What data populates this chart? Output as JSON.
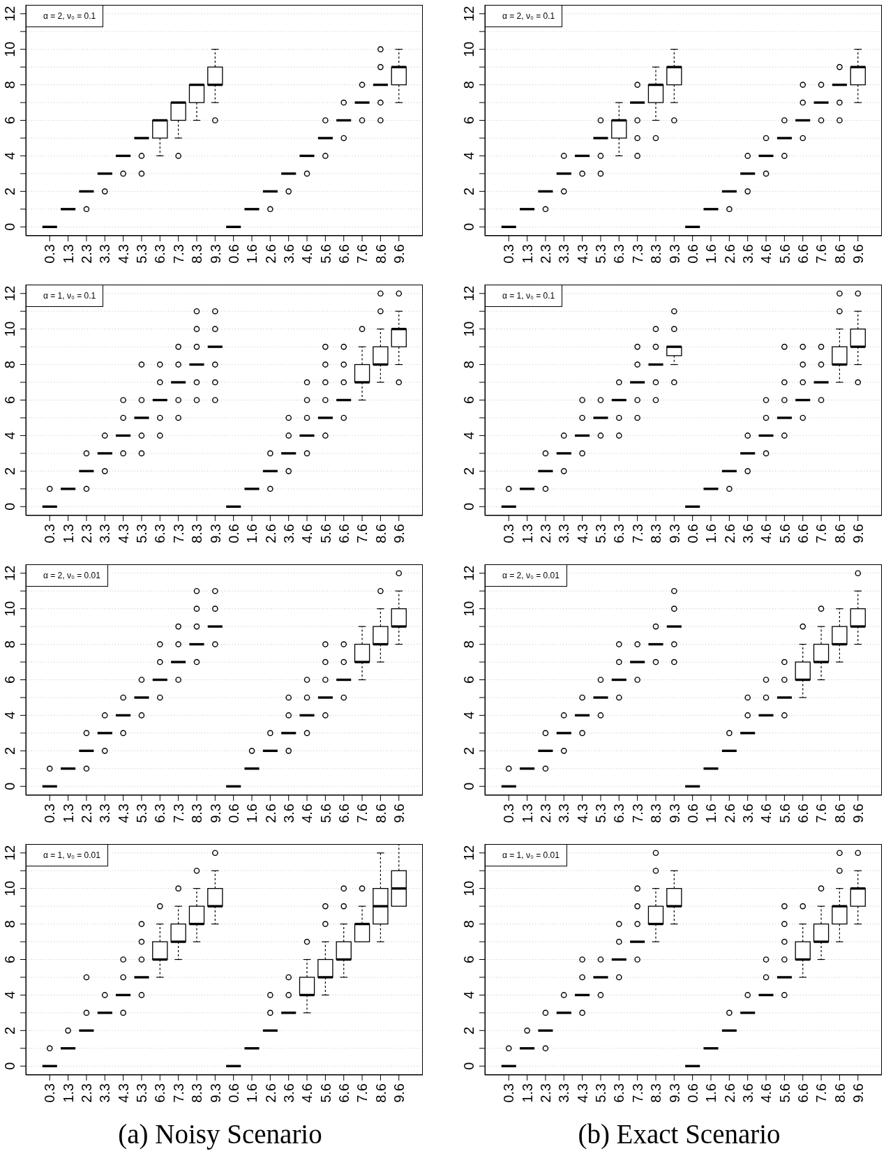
{
  "chart_data": [
    {
      "type": "box",
      "title": "α = 2, ν₀ = 0.1",
      "categories": [
        "0.3",
        "1.3",
        "2.3",
        "3.3",
        "4.3",
        "5.3",
        "6.3",
        "7.3",
        "8.3",
        "9.3",
        "0.6",
        "1.6",
        "2.6",
        "3.6",
        "4.6",
        "5.6",
        "6.6",
        "7.6",
        "8.6",
        "9.6"
      ],
      "boxes": [
        {
          "low": 0,
          "q1": 0,
          "median": 0,
          "q3": 0,
          "high": 0
        },
        {
          "low": 1,
          "q1": 1,
          "median": 1,
          "q3": 1,
          "high": 1
        },
        {
          "low": 2,
          "q1": 2,
          "median": 2,
          "q3": 2,
          "high": 2,
          "outliers": [
            1
          ]
        },
        {
          "low": 3,
          "q1": 3,
          "median": 3,
          "q3": 3,
          "high": 3,
          "outliers": [
            2
          ]
        },
        {
          "low": 4,
          "q1": 4,
          "median": 4,
          "q3": 4,
          "high": 4,
          "outliers": [
            3
          ]
        },
        {
          "low": 5,
          "q1": 5,
          "median": 5,
          "q3": 5,
          "high": 5,
          "outliers": [
            4,
            3
          ]
        },
        {
          "low": 4,
          "q1": 5,
          "median": 6,
          "q3": 6,
          "high": 6
        },
        {
          "low": 5,
          "q1": 6,
          "median": 7,
          "q3": 7,
          "high": 7,
          "outliers": [
            4
          ]
        },
        {
          "low": 6,
          "q1": 7,
          "median": 8,
          "q3": 8,
          "high": 8
        },
        {
          "low": 7,
          "q1": 8,
          "median": 8,
          "q3": 9,
          "high": 10,
          "outliers": [
            6
          ]
        },
        {
          "low": 0,
          "q1": 0,
          "median": 0,
          "q3": 0,
          "high": 0
        },
        {
          "low": 1,
          "q1": 1,
          "median": 1,
          "q3": 1,
          "high": 1
        },
        {
          "low": 2,
          "q1": 2,
          "median": 2,
          "q3": 2,
          "high": 2,
          "outliers": [
            1
          ]
        },
        {
          "low": 3,
          "q1": 3,
          "median": 3,
          "q3": 3,
          "high": 3,
          "outliers": [
            2
          ]
        },
        {
          "low": 4,
          "q1": 4,
          "median": 4,
          "q3": 4,
          "high": 4,
          "outliers": [
            3
          ]
        },
        {
          "low": 5,
          "q1": 5,
          "median": 5,
          "q3": 5,
          "high": 5,
          "outliers": [
            6,
            4
          ]
        },
        {
          "low": 6,
          "q1": 6,
          "median": 6,
          "q3": 6,
          "high": 6,
          "outliers": [
            7,
            5
          ]
        },
        {
          "low": 7,
          "q1": 7,
          "median": 7,
          "q3": 7,
          "high": 7,
          "outliers": [
            8,
            6
          ]
        },
        {
          "low": 8,
          "q1": 8,
          "median": 8,
          "q3": 8,
          "high": 8,
          "outliers": [
            10,
            9,
            7,
            6
          ]
        },
        {
          "low": 7,
          "q1": 8,
          "median": 9,
          "q3": 9,
          "high": 10
        }
      ],
      "ylim": [
        -0.5,
        12.5
      ],
      "yticks": [
        0,
        {
          "value": 1,
          "label": null
        },
        2,
        {
          "value": 3,
          "label": null
        },
        4,
        {
          "value": 5,
          "label": null
        },
        6,
        {
          "value": 7,
          "label": null
        },
        8,
        {
          "value": 9,
          "label": null
        },
        10,
        {
          "value": 11,
          "label": null
        },
        12
      ],
      "grid": "y"
    },
    {
      "type": "box",
      "title": "α = 2, ν₀ = 0.1",
      "categories": [
        "0.3",
        "1.3",
        "2.3",
        "3.3",
        "4.3",
        "5.3",
        "6.3",
        "7.3",
        "8.3",
        "9.3",
        "0.6",
        "1.6",
        "2.6",
        "3.6",
        "4.6",
        "5.6",
        "6.6",
        "7.6",
        "8.6",
        "9.6"
      ],
      "boxes": [
        {
          "low": 0,
          "q1": 0,
          "median": 0,
          "q3": 0,
          "high": 0
        },
        {
          "low": 1,
          "q1": 1,
          "median": 1,
          "q3": 1,
          "high": 1
        },
        {
          "low": 2,
          "q1": 2,
          "median": 2,
          "q3": 2,
          "high": 2,
          "outliers": [
            1
          ]
        },
        {
          "low": 3,
          "q1": 3,
          "median": 3,
          "q3": 3,
          "high": 3,
          "outliers": [
            4,
            2
          ]
        },
        {
          "low": 4,
          "q1": 4,
          "median": 4,
          "q3": 4,
          "high": 4,
          "outliers": [
            3
          ]
        },
        {
          "low": 5,
          "q1": 5,
          "median": 5,
          "q3": 5,
          "high": 5,
          "outliers": [
            6,
            4,
            3
          ]
        },
        {
          "low": 4,
          "q1": 5,
          "median": 6,
          "q3": 6,
          "high": 7
        },
        {
          "low": 7,
          "q1": 7,
          "median": 7,
          "q3": 7,
          "high": 7,
          "outliers": [
            8,
            6,
            5,
            4
          ]
        },
        {
          "low": 6,
          "q1": 7,
          "median": 8,
          "q3": 8,
          "high": 9,
          "outliers": [
            5
          ]
        },
        {
          "low": 7,
          "q1": 8,
          "median": 9,
          "q3": 9,
          "high": 10,
          "outliers": [
            6
          ]
        },
        {
          "low": 0,
          "q1": 0,
          "median": 0,
          "q3": 0,
          "high": 0
        },
        {
          "low": 1,
          "q1": 1,
          "median": 1,
          "q3": 1,
          "high": 1
        },
        {
          "low": 2,
          "q1": 2,
          "median": 2,
          "q3": 2,
          "high": 2,
          "outliers": [
            1
          ]
        },
        {
          "low": 3,
          "q1": 3,
          "median": 3,
          "q3": 3,
          "high": 3,
          "outliers": [
            4,
            2
          ]
        },
        {
          "low": 4,
          "q1": 4,
          "median": 4,
          "q3": 4,
          "high": 4,
          "outliers": [
            5,
            3
          ]
        },
        {
          "low": 5,
          "q1": 5,
          "median": 5,
          "q3": 5,
          "high": 5,
          "outliers": [
            6,
            4
          ]
        },
        {
          "low": 6,
          "q1": 6,
          "median": 6,
          "q3": 6,
          "high": 6,
          "outliers": [
            8,
            7,
            5
          ]
        },
        {
          "low": 7,
          "q1": 7,
          "median": 7,
          "q3": 7,
          "high": 7,
          "outliers": [
            8,
            6
          ]
        },
        {
          "low": 8,
          "q1": 8,
          "median": 8,
          "q3": 8,
          "high": 8,
          "outliers": [
            9,
            7,
            6
          ]
        },
        {
          "low": 7,
          "q1": 8,
          "median": 9,
          "q3": 9,
          "high": 10
        }
      ],
      "ylim": [
        -0.5,
        12.5
      ],
      "yticks": [
        0,
        {
          "value": 1,
          "label": null
        },
        2,
        {
          "value": 3,
          "label": null
        },
        4,
        {
          "value": 5,
          "label": null
        },
        6,
        {
          "value": 7,
          "label": null
        },
        8,
        {
          "value": 9,
          "label": null
        },
        10,
        {
          "value": 11,
          "label": null
        },
        12
      ],
      "grid": "y"
    },
    {
      "type": "box",
      "title": "α = 1, ν₀ = 0.1",
      "categories": [
        "0.3",
        "1.3",
        "2.3",
        "3.3",
        "4.3",
        "5.3",
        "6.3",
        "7.3",
        "8.3",
        "9.3",
        "0.6",
        "1.6",
        "2.6",
        "3.6",
        "4.6",
        "5.6",
        "6.6",
        "7.6",
        "8.6",
        "9.6"
      ],
      "boxes": [
        {
          "low": 0,
          "q1": 0,
          "median": 0,
          "q3": 0,
          "high": 0,
          "outliers": [
            1
          ]
        },
        {
          "low": 1,
          "q1": 1,
          "median": 1,
          "q3": 1,
          "high": 1
        },
        {
          "low": 2,
          "q1": 2,
          "median": 2,
          "q3": 2,
          "high": 2,
          "outliers": [
            3,
            1
          ]
        },
        {
          "low": 3,
          "q1": 3,
          "median": 3,
          "q3": 3,
          "high": 3,
          "outliers": [
            4,
            2
          ]
        },
        {
          "low": 4,
          "q1": 4,
          "median": 4,
          "q3": 4,
          "high": 4,
          "outliers": [
            6,
            5,
            3
          ]
        },
        {
          "low": 5,
          "q1": 5,
          "median": 5,
          "q3": 5,
          "high": 5,
          "outliers": [
            8,
            6,
            4,
            3
          ]
        },
        {
          "low": 6,
          "q1": 6,
          "median": 6,
          "q3": 6,
          "high": 6,
          "outliers": [
            8,
            7,
            5,
            4
          ]
        },
        {
          "low": 7,
          "q1": 7,
          "median": 7,
          "q3": 7,
          "high": 7,
          "outliers": [
            9,
            8,
            6,
            5
          ]
        },
        {
          "low": 8,
          "q1": 8,
          "median": 8,
          "q3": 8,
          "high": 8,
          "outliers": [
            11,
            10,
            9,
            7,
            6
          ]
        },
        {
          "low": 9,
          "q1": 9,
          "median": 9,
          "q3": 9,
          "high": 9,
          "outliers": [
            11,
            10,
            8,
            7,
            6
          ]
        },
        {
          "low": 0,
          "q1": 0,
          "median": 0,
          "q3": 0,
          "high": 0
        },
        {
          "low": 1,
          "q1": 1,
          "median": 1,
          "q3": 1,
          "high": 1
        },
        {
          "low": 2,
          "q1": 2,
          "median": 2,
          "q3": 2,
          "high": 2,
          "outliers": [
            3,
            1
          ]
        },
        {
          "low": 3,
          "q1": 3,
          "median": 3,
          "q3": 3,
          "high": 3,
          "outliers": [
            5,
            4,
            2
          ]
        },
        {
          "low": 4,
          "q1": 4,
          "median": 4,
          "q3": 4,
          "high": 4,
          "outliers": [
            7,
            6,
            5,
            3
          ]
        },
        {
          "low": 5,
          "q1": 5,
          "median": 5,
          "q3": 5,
          "high": 5,
          "outliers": [
            9,
            8,
            7,
            6,
            4
          ]
        },
        {
          "low": 6,
          "q1": 6,
          "median": 6,
          "q3": 6,
          "high": 6,
          "outliers": [
            9,
            8,
            7,
            5
          ]
        },
        {
          "low": 6,
          "q1": 7,
          "median": 7,
          "q3": 8,
          "high": 9,
          "outliers": [
            10
          ]
        },
        {
          "low": 7,
          "q1": 8,
          "median": 8,
          "q3": 9,
          "high": 10,
          "outliers": [
            12,
            11
          ]
        },
        {
          "low": 8,
          "q1": 9,
          "median": 10,
          "q3": 10,
          "high": 11,
          "outliers": [
            12,
            7
          ]
        }
      ],
      "ylim": [
        -0.5,
        12.5
      ],
      "yticks": [
        0,
        {
          "value": 1,
          "label": null
        },
        2,
        {
          "value": 3,
          "label": null
        },
        4,
        {
          "value": 5,
          "label": null
        },
        6,
        {
          "value": 7,
          "label": null
        },
        8,
        {
          "value": 9,
          "label": null
        },
        10,
        {
          "value": 11,
          "label": null
        },
        12
      ],
      "grid": "y"
    },
    {
      "type": "box",
      "title": "α = 1, ν₀ = 0.1",
      "categories": [
        "0.3",
        "1.3",
        "2.3",
        "3.3",
        "4.3",
        "5.3",
        "6.3",
        "7.3",
        "8.3",
        "9.3",
        "0.6",
        "1.6",
        "2.6",
        "3.6",
        "4.6",
        "5.6",
        "6.6",
        "7.6",
        "8.6",
        "9.6"
      ],
      "boxes": [
        {
          "low": 0,
          "q1": 0,
          "median": 0,
          "q3": 0,
          "high": 0,
          "outliers": [
            1
          ]
        },
        {
          "low": 1,
          "q1": 1,
          "median": 1,
          "q3": 1,
          "high": 1
        },
        {
          "low": 2,
          "q1": 2,
          "median": 2,
          "q3": 2,
          "high": 2,
          "outliers": [
            3,
            1
          ]
        },
        {
          "low": 3,
          "q1": 3,
          "median": 3,
          "q3": 3,
          "high": 3,
          "outliers": [
            4,
            2
          ]
        },
        {
          "low": 4,
          "q1": 4,
          "median": 4,
          "q3": 4,
          "high": 4,
          "outliers": [
            6,
            5,
            3
          ]
        },
        {
          "low": 5,
          "q1": 5,
          "median": 5,
          "q3": 5,
          "high": 5,
          "outliers": [
            6,
            4
          ]
        },
        {
          "low": 6,
          "q1": 6,
          "median": 6,
          "q3": 6,
          "high": 6,
          "outliers": [
            7,
            5,
            4
          ]
        },
        {
          "low": 7,
          "q1": 7,
          "median": 7,
          "q3": 7,
          "high": 7,
          "outliers": [
            9,
            8,
            6,
            5
          ]
        },
        {
          "low": 8,
          "q1": 8,
          "median": 8,
          "q3": 8,
          "high": 8,
          "outliers": [
            10,
            9,
            7,
            6
          ]
        },
        {
          "low": 8,
          "q1": 8.5,
          "median": 9,
          "q3": 9,
          "high": 9,
          "outliers": [
            11,
            10,
            7
          ]
        },
        {
          "low": 0,
          "q1": 0,
          "median": 0,
          "q3": 0,
          "high": 0
        },
        {
          "low": 1,
          "q1": 1,
          "median": 1,
          "q3": 1,
          "high": 1
        },
        {
          "low": 2,
          "q1": 2,
          "median": 2,
          "q3": 2,
          "high": 2,
          "outliers": [
            1
          ]
        },
        {
          "low": 3,
          "q1": 3,
          "median": 3,
          "q3": 3,
          "high": 3,
          "outliers": [
            4,
            2
          ]
        },
        {
          "low": 4,
          "q1": 4,
          "median": 4,
          "q3": 4,
          "high": 4,
          "outliers": [
            6,
            5,
            3
          ]
        },
        {
          "low": 5,
          "q1": 5,
          "median": 5,
          "q3": 5,
          "high": 5,
          "outliers": [
            9,
            7,
            6,
            4
          ]
        },
        {
          "low": 6,
          "q1": 6,
          "median": 6,
          "q3": 6,
          "high": 6,
          "outliers": [
            9,
            8,
            7,
            5
          ]
        },
        {
          "low": 7,
          "q1": 7,
          "median": 7,
          "q3": 7,
          "high": 7,
          "outliers": [
            9,
            8,
            6
          ]
        },
        {
          "low": 7,
          "q1": 8,
          "median": 8,
          "q3": 9,
          "high": 10,
          "outliers": [
            12,
            11
          ]
        },
        {
          "low": 8,
          "q1": 9,
          "median": 9,
          "q3": 10,
          "high": 11,
          "outliers": [
            12,
            7
          ]
        }
      ],
      "ylim": [
        -0.5,
        12.5
      ],
      "yticks": [
        0,
        {
          "value": 1,
          "label": null
        },
        2,
        {
          "value": 3,
          "label": null
        },
        4,
        {
          "value": 5,
          "label": null
        },
        6,
        {
          "value": 7,
          "label": null
        },
        8,
        {
          "value": 9,
          "label": null
        },
        10,
        {
          "value": 11,
          "label": null
        },
        12
      ],
      "grid": "y"
    },
    {
      "type": "box",
      "title": "α = 2, ν₀ = 0.01",
      "categories": [
        "0.3",
        "1.3",
        "2.3",
        "3.3",
        "4.3",
        "5.3",
        "6.3",
        "7.3",
        "8.3",
        "9.3",
        "0.6",
        "1.6",
        "2.6",
        "3.6",
        "4.6",
        "5.6",
        "6.6",
        "7.6",
        "8.6",
        "9.6"
      ],
      "boxes": [
        {
          "low": 0,
          "q1": 0,
          "median": 0,
          "q3": 0,
          "high": 0,
          "outliers": [
            1
          ]
        },
        {
          "low": 1,
          "q1": 1,
          "median": 1,
          "q3": 1,
          "high": 1
        },
        {
          "low": 2,
          "q1": 2,
          "median": 2,
          "q3": 2,
          "high": 2,
          "outliers": [
            3,
            1
          ]
        },
        {
          "low": 3,
          "q1": 3,
          "median": 3,
          "q3": 3,
          "high": 3,
          "outliers": [
            4,
            2
          ]
        },
        {
          "low": 4,
          "q1": 4,
          "median": 4,
          "q3": 4,
          "high": 4,
          "outliers": [
            5,
            3
          ]
        },
        {
          "low": 5,
          "q1": 5,
          "median": 5,
          "q3": 5,
          "high": 5,
          "outliers": [
            6,
            4
          ]
        },
        {
          "low": 6,
          "q1": 6,
          "median": 6,
          "q3": 6,
          "high": 6,
          "outliers": [
            8,
            7,
            5
          ]
        },
        {
          "low": 7,
          "q1": 7,
          "median": 7,
          "q3": 7,
          "high": 7,
          "outliers": [
            9,
            8,
            6
          ]
        },
        {
          "low": 8,
          "q1": 8,
          "median": 8,
          "q3": 8,
          "high": 8,
          "outliers": [
            11,
            10,
            9,
            7
          ]
        },
        {
          "low": 9,
          "q1": 9,
          "median": 9,
          "q3": 9,
          "high": 9,
          "outliers": [
            11,
            10,
            8
          ]
        },
        {
          "low": 0,
          "q1": 0,
          "median": 0,
          "q3": 0,
          "high": 0
        },
        {
          "low": 1,
          "q1": 1,
          "median": 1,
          "q3": 1,
          "high": 1,
          "outliers": [
            2
          ]
        },
        {
          "low": 2,
          "q1": 2,
          "median": 2,
          "q3": 2,
          "high": 2,
          "outliers": [
            3
          ]
        },
        {
          "low": 3,
          "q1": 3,
          "median": 3,
          "q3": 3,
          "high": 3,
          "outliers": [
            5,
            4,
            2
          ]
        },
        {
          "low": 4,
          "q1": 4,
          "median": 4,
          "q3": 4,
          "high": 4,
          "outliers": [
            6,
            5,
            3
          ]
        },
        {
          "low": 5,
          "q1": 5,
          "median": 5,
          "q3": 5,
          "high": 5,
          "outliers": [
            8,
            7,
            6,
            4
          ]
        },
        {
          "low": 6,
          "q1": 6,
          "median": 6,
          "q3": 6,
          "high": 6,
          "outliers": [
            8,
            7,
            5
          ]
        },
        {
          "low": 6,
          "q1": 7,
          "median": 7,
          "q3": 8,
          "high": 9
        },
        {
          "low": 7,
          "q1": 8,
          "median": 8,
          "q3": 9,
          "high": 10,
          "outliers": [
            11
          ]
        },
        {
          "low": 8,
          "q1": 9,
          "median": 9,
          "q3": 10,
          "high": 11,
          "outliers": [
            12
          ]
        }
      ],
      "ylim": [
        -0.5,
        12.5
      ],
      "yticks": [
        0,
        {
          "value": 1,
          "label": null
        },
        2,
        {
          "value": 3,
          "label": null
        },
        4,
        {
          "value": 5,
          "label": null
        },
        6,
        {
          "value": 7,
          "label": null
        },
        8,
        {
          "value": 9,
          "label": null
        },
        10,
        {
          "value": 11,
          "label": null
        },
        12
      ],
      "grid": "y"
    },
    {
      "type": "box",
      "title": "α = 2, ν₀ = 0.01",
      "categories": [
        "0.3",
        "1.3",
        "2.3",
        "3.3",
        "4.3",
        "5.3",
        "6.3",
        "7.3",
        "8.3",
        "9.3",
        "0.6",
        "1.6",
        "2.6",
        "3.6",
        "4.6",
        "5.6",
        "6.6",
        "7.6",
        "8.6",
        "9.6"
      ],
      "boxes": [
        {
          "low": 0,
          "q1": 0,
          "median": 0,
          "q3": 0,
          "high": 0,
          "outliers": [
            1
          ]
        },
        {
          "low": 1,
          "q1": 1,
          "median": 1,
          "q3": 1,
          "high": 1
        },
        {
          "low": 2,
          "q1": 2,
          "median": 2,
          "q3": 2,
          "high": 2,
          "outliers": [
            3,
            1
          ]
        },
        {
          "low": 3,
          "q1": 3,
          "median": 3,
          "q3": 3,
          "high": 3,
          "outliers": [
            4,
            2
          ]
        },
        {
          "low": 4,
          "q1": 4,
          "median": 4,
          "q3": 4,
          "high": 4,
          "outliers": [
            5,
            3
          ]
        },
        {
          "low": 5,
          "q1": 5,
          "median": 5,
          "q3": 5,
          "high": 5,
          "outliers": [
            6,
            4
          ]
        },
        {
          "low": 6,
          "q1": 6,
          "median": 6,
          "q3": 6,
          "high": 6,
          "outliers": [
            8,
            7,
            5
          ]
        },
        {
          "low": 7,
          "q1": 7,
          "median": 7,
          "q3": 7,
          "high": 7,
          "outliers": [
            8,
            6
          ]
        },
        {
          "low": 8,
          "q1": 8,
          "median": 8,
          "q3": 8,
          "high": 8,
          "outliers": [
            9,
            7
          ]
        },
        {
          "low": 9,
          "q1": 9,
          "median": 9,
          "q3": 9,
          "high": 9,
          "outliers": [
            11,
            10,
            8,
            7
          ]
        },
        {
          "low": 0,
          "q1": 0,
          "median": 0,
          "q3": 0,
          "high": 0
        },
        {
          "low": 1,
          "q1": 1,
          "median": 1,
          "q3": 1,
          "high": 1
        },
        {
          "low": 2,
          "q1": 2,
          "median": 2,
          "q3": 2,
          "high": 2,
          "outliers": [
            3
          ]
        },
        {
          "low": 3,
          "q1": 3,
          "median": 3,
          "q3": 3,
          "high": 3,
          "outliers": [
            5,
            4
          ]
        },
        {
          "low": 4,
          "q1": 4,
          "median": 4,
          "q3": 4,
          "high": 4,
          "outliers": [
            6,
            5
          ]
        },
        {
          "low": 5,
          "q1": 5,
          "median": 5,
          "q3": 5,
          "high": 5,
          "outliers": [
            7,
            6,
            4
          ]
        },
        {
          "low": 5,
          "q1": 6,
          "median": 6,
          "q3": 7,
          "high": 8,
          "outliers": [
            9
          ]
        },
        {
          "low": 6,
          "q1": 7,
          "median": 7,
          "q3": 8,
          "high": 9,
          "outliers": [
            10
          ]
        },
        {
          "low": 7,
          "q1": 8,
          "median": 8,
          "q3": 9,
          "high": 10
        },
        {
          "low": 8,
          "q1": 9,
          "median": 9,
          "q3": 10,
          "high": 11,
          "outliers": [
            12
          ]
        }
      ],
      "ylim": [
        -0.5,
        12.5
      ],
      "yticks": [
        0,
        {
          "value": 1,
          "label": null
        },
        2,
        {
          "value": 3,
          "label": null
        },
        4,
        {
          "value": 5,
          "label": null
        },
        6,
        {
          "value": 7,
          "label": null
        },
        8,
        {
          "value": 9,
          "label": null
        },
        10,
        {
          "value": 11,
          "label": null
        },
        12
      ],
      "grid": "y"
    },
    {
      "type": "box",
      "title": "α = 1, ν₀ = 0.01",
      "categories": [
        "0.3",
        "1.3",
        "2.3",
        "3.3",
        "4.3",
        "5.3",
        "6.3",
        "7.3",
        "8.3",
        "9.3",
        "0.6",
        "1.6",
        "2.6",
        "3.6",
        "4.6",
        "5.6",
        "6.6",
        "7.6",
        "8.6",
        "9.6"
      ],
      "boxes": [
        {
          "low": 0,
          "q1": 0,
          "median": 0,
          "q3": 0,
          "high": 0,
          "outliers": [
            1
          ]
        },
        {
          "low": 1,
          "q1": 1,
          "median": 1,
          "q3": 1,
          "high": 1,
          "outliers": [
            2
          ]
        },
        {
          "low": 2,
          "q1": 2,
          "median": 2,
          "q3": 2,
          "high": 2,
          "outliers": [
            5,
            3
          ]
        },
        {
          "low": 3,
          "q1": 3,
          "median": 3,
          "q3": 3,
          "high": 3,
          "outliers": [
            4
          ]
        },
        {
          "low": 4,
          "q1": 4,
          "median": 4,
          "q3": 4,
          "high": 4,
          "outliers": [
            6,
            5,
            3
          ]
        },
        {
          "low": 5,
          "q1": 5,
          "median": 5,
          "q3": 5,
          "high": 5,
          "outliers": [
            8,
            7,
            6,
            4
          ]
        },
        {
          "low": 5,
          "q1": 6,
          "median": 6,
          "q3": 7,
          "high": 8,
          "outliers": [
            9
          ]
        },
        {
          "low": 6,
          "q1": 7,
          "median": 7,
          "q3": 8,
          "high": 9,
          "outliers": [
            10
          ]
        },
        {
          "low": 7,
          "q1": 8,
          "median": 8,
          "q3": 9,
          "high": 10,
          "outliers": [
            11
          ]
        },
        {
          "low": 8,
          "q1": 9,
          "median": 9,
          "q3": 10,
          "high": 11,
          "outliers": [
            12
          ]
        },
        {
          "low": 0,
          "q1": 0,
          "median": 0,
          "q3": 0,
          "high": 0
        },
        {
          "low": 1,
          "q1": 1,
          "median": 1,
          "q3": 1,
          "high": 1
        },
        {
          "low": 2,
          "q1": 2,
          "median": 2,
          "q3": 2,
          "high": 2,
          "outliers": [
            4,
            3
          ]
        },
        {
          "low": 3,
          "q1": 3,
          "median": 3,
          "q3": 3,
          "high": 3,
          "outliers": [
            5,
            4
          ]
        },
        {
          "low": 3,
          "q1": 4,
          "median": 4,
          "q3": 5,
          "high": 6,
          "outliers": [
            7
          ]
        },
        {
          "low": 4,
          "q1": 5,
          "median": 5,
          "q3": 6,
          "high": 7,
          "outliers": [
            9,
            8
          ]
        },
        {
          "low": 5,
          "q1": 6,
          "median": 6,
          "q3": 7,
          "high": 8,
          "outliers": [
            10,
            9
          ]
        },
        {
          "low": 7,
          "q1": 7,
          "median": 8,
          "q3": 8,
          "high": 9,
          "outliers": [
            10
          ]
        },
        {
          "low": 7,
          "q1": 8,
          "median": 9,
          "q3": 10,
          "high": 12
        },
        {
          "low": 9,
          "q1": 9,
          "median": 10,
          "q3": 11,
          "high": 12.5
        }
      ],
      "ylim": [
        -0.5,
        12.5
      ],
      "yticks": [
        0,
        {
          "value": 1,
          "label": null
        },
        2,
        {
          "value": 3,
          "label": null
        },
        4,
        {
          "value": 5,
          "label": null
        },
        6,
        {
          "value": 7,
          "label": null
        },
        8,
        {
          "value": 9,
          "label": null
        },
        10,
        {
          "value": 11,
          "label": null
        },
        12
      ],
      "grid": "y",
      "annotations": [
        "(a) Noisy Scenario"
      ]
    },
    {
      "type": "box",
      "title": "α = 1, ν₀ = 0.01",
      "categories": [
        "0.3",
        "1.3",
        "2.3",
        "3.3",
        "4.3",
        "5.3",
        "6.3",
        "7.3",
        "8.3",
        "9.3",
        "0.6",
        "1.6",
        "2.6",
        "3.6",
        "4.6",
        "5.6",
        "6.6",
        "7.6",
        "8.6",
        "9.6"
      ],
      "boxes": [
        {
          "low": 0,
          "q1": 0,
          "median": 0,
          "q3": 0,
          "high": 0,
          "outliers": [
            1
          ]
        },
        {
          "low": 1,
          "q1": 1,
          "median": 1,
          "q3": 1,
          "high": 1,
          "outliers": [
            2
          ]
        },
        {
          "low": 2,
          "q1": 2,
          "median": 2,
          "q3": 2,
          "high": 2,
          "outliers": [
            3,
            1
          ]
        },
        {
          "low": 3,
          "q1": 3,
          "median": 3,
          "q3": 3,
          "high": 3,
          "outliers": [
            4
          ]
        },
        {
          "low": 4,
          "q1": 4,
          "median": 4,
          "q3": 4,
          "high": 4,
          "outliers": [
            6,
            5,
            3
          ]
        },
        {
          "low": 5,
          "q1": 5,
          "median": 5,
          "q3": 5,
          "high": 5,
          "outliers": [
            6,
            4
          ]
        },
        {
          "low": 6,
          "q1": 6,
          "median": 6,
          "q3": 6,
          "high": 6,
          "outliers": [
            8,
            7,
            5
          ]
        },
        {
          "low": 7,
          "q1": 7,
          "median": 7,
          "q3": 7,
          "high": 7,
          "outliers": [
            10,
            9,
            8,
            6
          ]
        },
        {
          "low": 7,
          "q1": 8,
          "median": 8,
          "q3": 9,
          "high": 10,
          "outliers": [
            12,
            11
          ]
        },
        {
          "low": 8,
          "q1": 9,
          "median": 9,
          "q3": 10,
          "high": 11
        },
        {
          "low": 0,
          "q1": 0,
          "median": 0,
          "q3": 0,
          "high": 0
        },
        {
          "low": 1,
          "q1": 1,
          "median": 1,
          "q3": 1,
          "high": 1
        },
        {
          "low": 2,
          "q1": 2,
          "median": 2,
          "q3": 2,
          "high": 2,
          "outliers": [
            3
          ]
        },
        {
          "low": 3,
          "q1": 3,
          "median": 3,
          "q3": 3,
          "high": 3,
          "outliers": [
            4
          ]
        },
        {
          "low": 4,
          "q1": 4,
          "median": 4,
          "q3": 4,
          "high": 4,
          "outliers": [
            6,
            5
          ]
        },
        {
          "low": 5,
          "q1": 5,
          "median": 5,
          "q3": 5,
          "high": 5,
          "outliers": [
            9,
            8,
            7,
            6,
            4
          ]
        },
        {
          "low": 5,
          "q1": 6,
          "median": 6,
          "q3": 7,
          "high": 8,
          "outliers": [
            9
          ]
        },
        {
          "low": 6,
          "q1": 7,
          "median": 7,
          "q3": 8,
          "high": 9,
          "outliers": [
            10
          ]
        },
        {
          "low": 7,
          "q1": 8,
          "median": 9,
          "q3": 9,
          "high": 10,
          "outliers": [
            12,
            11
          ]
        },
        {
          "low": 8,
          "q1": 9,
          "median": 10,
          "q3": 10,
          "high": 11,
          "outliers": [
            12
          ]
        }
      ],
      "ylim": [
        -0.5,
        12.5
      ],
      "yticks": [
        0,
        {
          "value": 1,
          "label": null
        },
        2,
        {
          "value": 3,
          "label": null
        },
        4,
        {
          "value": 5,
          "label": null
        },
        6,
        {
          "value": 7,
          "label": null
        },
        8,
        {
          "value": 9,
          "label": null
        },
        10,
        {
          "value": 11,
          "label": null
        },
        12
      ],
      "grid": "y",
      "annotations": [
        "(b) Exact Scenario"
      ]
    }
  ]
}
